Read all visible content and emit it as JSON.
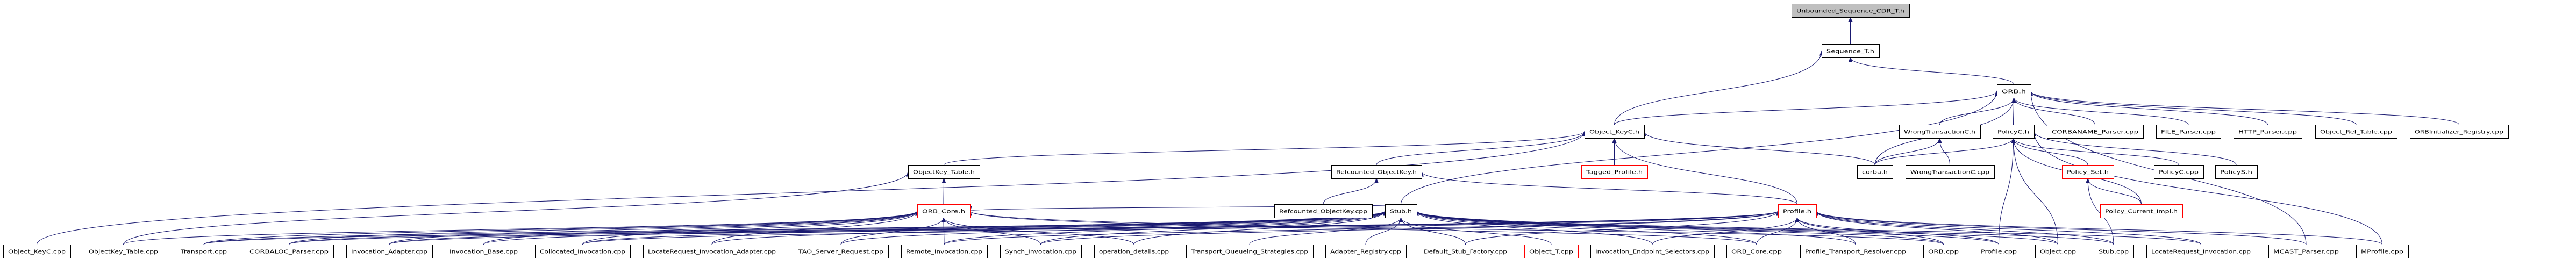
{
  "graph": {
    "edge_color": "#191970",
    "highlight_border_color": "#ff0000",
    "root_fill_color": "#bfbfbf",
    "nodes": [
      {
        "id": "unb",
        "label": "Unbounded_Sequence_CDR_T.h",
        "style": "root"
      },
      {
        "id": "seq",
        "label": "Sequence_T.h",
        "style": "normal"
      },
      {
        "id": "orbh",
        "label": "ORB.h",
        "style": "normal"
      },
      {
        "id": "okch",
        "label": "Object_KeyC.h",
        "style": "normal"
      },
      {
        "id": "wtch",
        "label": "WrongTransactionC.h",
        "style": "normal"
      },
      {
        "id": "polch",
        "label": "PolicyC.h",
        "style": "normal"
      },
      {
        "id": "corbaname",
        "label": "CORBANAME_Parser.cpp",
        "style": "normal"
      },
      {
        "id": "file",
        "label": "FILE_Parser.cpp",
        "style": "normal"
      },
      {
        "id": "http",
        "label": "HTTP_Parser.cpp",
        "style": "normal"
      },
      {
        "id": "ort",
        "label": "Object_Ref_Table.cpp",
        "style": "normal"
      },
      {
        "id": "orbinit",
        "label": "ORBInitializer_Registry.cpp",
        "style": "normal"
      },
      {
        "id": "okth",
        "label": "ObjectKey_Table.h",
        "style": "normal"
      },
      {
        "id": "rokh",
        "label": "Refcounted_ObjectKey.h",
        "style": "normal"
      },
      {
        "id": "tagged",
        "label": "Tagged_Profile.h",
        "style": "red"
      },
      {
        "id": "corbah",
        "label": "corba.h",
        "style": "normal"
      },
      {
        "id": "wtccpp",
        "label": "WrongTransactionC.cpp",
        "style": "normal"
      },
      {
        "id": "polset",
        "label": "Policy_Set.h",
        "style": "red"
      },
      {
        "id": "polccpp",
        "label": "PolicyC.cpp",
        "style": "normal"
      },
      {
        "id": "polsh",
        "label": "PolicyS.h",
        "style": "normal"
      },
      {
        "id": "orbcoreh",
        "label": "ORB_Core.h",
        "style": "red"
      },
      {
        "id": "rokcpp",
        "label": "Refcounted_ObjectKey.cpp",
        "style": "normal"
      },
      {
        "id": "stubh",
        "label": "Stub.h",
        "style": "normal"
      },
      {
        "id": "profileh",
        "label": "Profile.h",
        "style": "red"
      },
      {
        "id": "polcur",
        "label": "Policy_Current_Impl.h",
        "style": "red"
      },
      {
        "id": "okccpp",
        "label": "Object_KeyC.cpp",
        "style": "normal"
      },
      {
        "id": "oktcpp",
        "label": "ObjectKey_Table.cpp",
        "style": "normal"
      },
      {
        "id": "transport",
        "label": "Transport.cpp",
        "style": "normal"
      },
      {
        "id": "corbaloc",
        "label": "CORBALOC_Parser.cpp",
        "style": "normal"
      },
      {
        "id": "invadapter",
        "label": "Invocation_Adapter.cpp",
        "style": "normal"
      },
      {
        "id": "invbase",
        "label": "Invocation_Base.cpp",
        "style": "normal"
      },
      {
        "id": "colloc",
        "label": "Collocated_Invocation.cpp",
        "style": "normal"
      },
      {
        "id": "lria",
        "label": "LocateRequest_Invocation_Adapter.cpp",
        "style": "normal"
      },
      {
        "id": "tsr",
        "label": "TAO_Server_Request.cpp",
        "style": "normal"
      },
      {
        "id": "remote",
        "label": "Remote_Invocation.cpp",
        "style": "normal"
      },
      {
        "id": "synch",
        "label": "Synch_Invocation.cpp",
        "style": "normal"
      },
      {
        "id": "opdet",
        "label": "operation_details.cpp",
        "style": "normal"
      },
      {
        "id": "tqs",
        "label": "Transport_Queueing_Strategies.cpp",
        "style": "normal"
      },
      {
        "id": "adreg",
        "label": "Adapter_Registry.cpp",
        "style": "normal"
      },
      {
        "id": "dsf",
        "label": "Default_Stub_Factory.cpp",
        "style": "normal"
      },
      {
        "id": "objt",
        "label": "Object_T.cpp",
        "style": "red"
      },
      {
        "id": "ies",
        "label": "Invocation_Endpoint_Selectors.cpp",
        "style": "normal"
      },
      {
        "id": "orbcorecpp",
        "label": "ORB_Core.cpp",
        "style": "normal"
      },
      {
        "id": "ptr",
        "label": "Profile_Transport_Resolver.cpp",
        "style": "normal"
      },
      {
        "id": "orbcpp",
        "label": "ORB.cpp",
        "style": "normal"
      },
      {
        "id": "profilecpp",
        "label": "Profile.cpp",
        "style": "normal"
      },
      {
        "id": "objcpp",
        "label": "Object.cpp",
        "style": "normal"
      },
      {
        "id": "stubcpp",
        "label": "Stub.cpp",
        "style": "normal"
      },
      {
        "id": "lricpp",
        "label": "LocateRequest_Invocation.cpp",
        "style": "normal"
      },
      {
        "id": "mcast",
        "label": "MCAST_Parser.cpp",
        "style": "normal"
      },
      {
        "id": "mprofile",
        "label": "MProfile.cpp",
        "style": "normal"
      }
    ],
    "edges": [
      [
        "seq",
        "unb"
      ],
      [
        "orbh",
        "seq"
      ],
      [
        "okch",
        "seq"
      ],
      [
        "okch",
        "orbh"
      ],
      [
        "corbah",
        "orbh"
      ],
      [
        "corbah",
        "okch"
      ],
      [
        "corbah",
        "wtch"
      ],
      [
        "corbah",
        "polch"
      ],
      [
        "wtch",
        "orbh"
      ],
      [
        "wtccpp",
        "wtch"
      ],
      [
        "polch",
        "orbh"
      ],
      [
        "corbaname",
        "orbh"
      ],
      [
        "file",
        "orbh"
      ],
      [
        "http",
        "orbh"
      ],
      [
        "ort",
        "orbh"
      ],
      [
        "orbinit",
        "orbh"
      ],
      [
        "mcast",
        "orbh"
      ],
      [
        "polset",
        "polch"
      ],
      [
        "polccpp",
        "polch"
      ],
      [
        "polsh",
        "polch"
      ],
      [
        "polcur",
        "polch"
      ],
      [
        "polcur",
        "polset"
      ],
      [
        "mprofile",
        "polch"
      ],
      [
        "profilecpp",
        "polch"
      ],
      [
        "objcpp",
        "polch"
      ],
      [
        "stubcpp",
        "polset"
      ],
      [
        "tagged",
        "okch"
      ],
      [
        "okth",
        "okch"
      ],
      [
        "rokh",
        "okch"
      ],
      [
        "rokcpp",
        "rokh"
      ],
      [
        "orbcoreh",
        "okth"
      ],
      [
        "profileh",
        "rokh"
      ],
      [
        "profileh",
        "okch"
      ],
      [
        "stubh",
        "orbh"
      ],
      [
        "stubh",
        "orbcoreh"
      ],
      [
        "okccpp",
        "okch"
      ],
      [
        "oktcpp",
        "okth"
      ],
      [
        "oktcpp",
        "orbcoreh"
      ],
      [
        "transport",
        "orbcoreh"
      ],
      [
        "transport",
        "stubh"
      ],
      [
        "transport",
        "profileh"
      ],
      [
        "corbaloc",
        "orbcoreh"
      ],
      [
        "corbaloc",
        "stubh"
      ],
      [
        "corbaloc",
        "profileh"
      ],
      [
        "invadapter",
        "orbcoreh"
      ],
      [
        "invadapter",
        "stubh"
      ],
      [
        "invadapter",
        "profileh"
      ],
      [
        "invbase",
        "orbcoreh"
      ],
      [
        "invbase",
        "stubh"
      ],
      [
        "colloc",
        "orbcoreh"
      ],
      [
        "colloc",
        "stubh"
      ],
      [
        "colloc",
        "profileh"
      ],
      [
        "lria",
        "orbcoreh"
      ],
      [
        "lria",
        "stubh"
      ],
      [
        "tsr",
        "orbcoreh"
      ],
      [
        "tsr",
        "stubh"
      ],
      [
        "remote",
        "orbcoreh"
      ],
      [
        "remote",
        "stubh"
      ],
      [
        "remote",
        "profileh"
      ],
      [
        "synch",
        "orbcoreh"
      ],
      [
        "synch",
        "stubh"
      ],
      [
        "synch",
        "profileh"
      ],
      [
        "opdet",
        "orbcoreh"
      ],
      [
        "opdet",
        "stubh"
      ],
      [
        "tqs",
        "stubh"
      ],
      [
        "adreg",
        "stubh"
      ],
      [
        "dsf",
        "stubh"
      ],
      [
        "dsf",
        "profileh"
      ],
      [
        "objt",
        "stubh"
      ],
      [
        "ies",
        "stubh"
      ],
      [
        "ies",
        "profileh"
      ],
      [
        "orbcorecpp",
        "stubh"
      ],
      [
        "orbcorecpp",
        "profileh"
      ],
      [
        "orbcorecpp",
        "orbcoreh"
      ],
      [
        "ptr",
        "stubh"
      ],
      [
        "ptr",
        "profileh"
      ],
      [
        "orbcpp",
        "stubh"
      ],
      [
        "orbcpp",
        "profileh"
      ],
      [
        "orbcpp",
        "orbcoreh"
      ],
      [
        "profilecpp",
        "profileh"
      ],
      [
        "profilecpp",
        "stubh"
      ],
      [
        "objcpp",
        "stubh"
      ],
      [
        "objcpp",
        "profileh"
      ],
      [
        "stubcpp",
        "stubh"
      ],
      [
        "stubcpp",
        "profileh"
      ],
      [
        "lricpp",
        "stubh"
      ],
      [
        "lricpp",
        "profileh"
      ],
      [
        "mcast",
        "profileh"
      ],
      [
        "mprofile",
        "profileh"
      ]
    ]
  }
}
